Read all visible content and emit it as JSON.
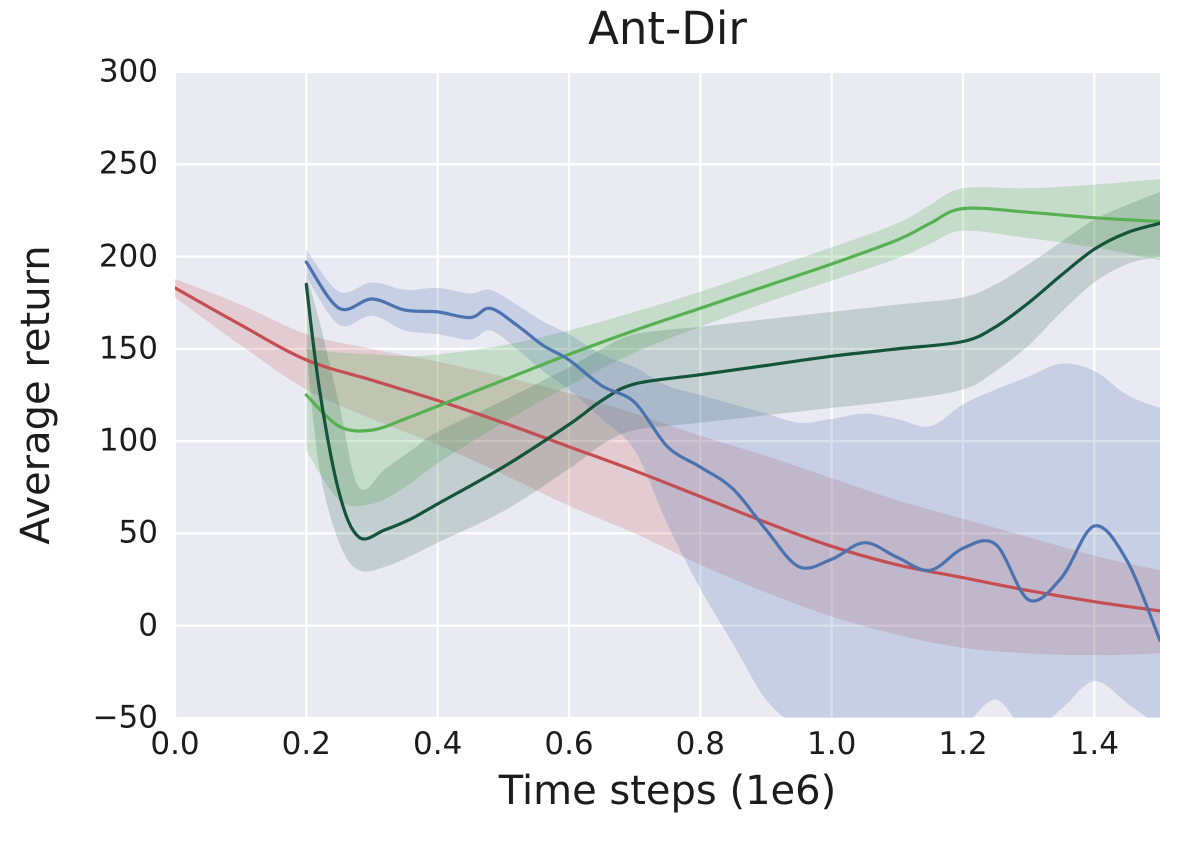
{
  "chart_data": {
    "type": "line",
    "title": "Ant-Dir",
    "xlabel": "Time steps (1e6)",
    "ylabel": "Average return",
    "xlim": [
      0.0,
      1.5
    ],
    "ylim": [
      -50,
      300
    ],
    "xticks": [
      0.0,
      0.2,
      0.4,
      0.6,
      0.8,
      1.0,
      1.2,
      1.4
    ],
    "xtick_labels": [
      "0.0",
      "0.2",
      "0.4",
      "0.6",
      "0.8",
      "1.0",
      "1.2",
      "1.4"
    ],
    "yticks": [
      -50,
      0,
      50,
      100,
      150,
      200,
      250,
      300
    ],
    "ytick_labels": [
      "−50",
      "0",
      "50",
      "100",
      "150",
      "200",
      "250",
      "300"
    ],
    "grid": true,
    "legend": "none",
    "plot_bg": "#eaeaf2",
    "grid_color": "#ffffff",
    "text_color": "#1c1c1c",
    "series": [
      {
        "name": "red",
        "color": "#c44e52",
        "band_color": "rgba(196,78,82,0.20)",
        "x": [
          0.0,
          0.1,
          0.2,
          0.3,
          0.4,
          0.5,
          0.6,
          0.7,
          0.8,
          0.9,
          1.0,
          1.1,
          1.2,
          1.3,
          1.4,
          1.5
        ],
        "y": [
          183,
          163,
          144,
          133,
          122,
          110,
          97,
          84,
          70,
          56,
          43,
          33,
          26,
          19,
          13,
          8
        ],
        "lo": [
          178,
          152,
          128,
          112,
          98,
          82,
          65,
          50,
          33,
          18,
          5,
          -5,
          -12,
          -15,
          -16,
          -15
        ],
        "hi": [
          188,
          174,
          158,
          150,
          143,
          135,
          126,
          115,
          103,
          92,
          80,
          68,
          58,
          48,
          38,
          30
        ]
      },
      {
        "name": "green-light",
        "color": "#57b152",
        "band_color": "rgba(87,178,85,0.25)",
        "x": [
          0.2,
          0.25,
          0.3,
          0.35,
          0.4,
          0.5,
          0.6,
          0.7,
          0.8,
          0.9,
          1.0,
          1.1,
          1.15,
          1.2,
          1.3,
          1.4,
          1.5
        ],
        "y": [
          125,
          108,
          106,
          112,
          119,
          133,
          147,
          160,
          172,
          184,
          196,
          209,
          218,
          226,
          224,
          221,
          219
        ],
        "lo": [
          95,
          68,
          66,
          75,
          88,
          110,
          130,
          148,
          162,
          175,
          187,
          199,
          207,
          214,
          210,
          205,
          198
        ],
        "hi": [
          150,
          148,
          147,
          146,
          147,
          152,
          160,
          170,
          181,
          193,
          205,
          218,
          228,
          237,
          237,
          239,
          242
        ]
      },
      {
        "name": "green-dark",
        "color": "#14543a",
        "band_color": "rgba(21,84,58,0.18)",
        "x": [
          0.2,
          0.22,
          0.25,
          0.28,
          0.32,
          0.36,
          0.4,
          0.5,
          0.6,
          0.65,
          0.7,
          0.8,
          0.9,
          1.0,
          1.1,
          1.2,
          1.25,
          1.3,
          1.35,
          1.4,
          1.45,
          1.5
        ],
        "y": [
          185,
          128,
          72,
          48,
          52,
          58,
          66,
          86,
          109,
          122,
          131,
          136,
          141,
          146,
          150,
          154,
          162,
          175,
          190,
          204,
          213,
          218
        ],
        "lo": [
          150,
          85,
          45,
          30,
          32,
          38,
          45,
          62,
          85,
          98,
          106,
          110,
          114,
          118,
          122,
          128,
          138,
          152,
          170,
          186,
          196,
          200
        ],
        "hi": [
          190,
          165,
          120,
          75,
          85,
          95,
          105,
          122,
          140,
          150,
          158,
          162,
          166,
          170,
          174,
          178,
          185,
          196,
          208,
          220,
          228,
          235
        ]
      },
      {
        "name": "blue",
        "color": "#4c72b0",
        "band_color": "rgba(76,114,176,0.22)",
        "x": [
          0.2,
          0.25,
          0.3,
          0.35,
          0.4,
          0.45,
          0.48,
          0.52,
          0.56,
          0.6,
          0.65,
          0.7,
          0.75,
          0.8,
          0.85,
          0.9,
          0.95,
          1.0,
          1.05,
          1.1,
          1.15,
          1.2,
          1.25,
          1.3,
          1.35,
          1.4,
          1.45,
          1.5
        ],
        "y": [
          197,
          172,
          177,
          171,
          170,
          167,
          172,
          163,
          152,
          144,
          130,
          121,
          97,
          86,
          74,
          52,
          32,
          36,
          45,
          37,
          30,
          42,
          44,
          14,
          26,
          54,
          35,
          -8
        ],
        "lo": [
          189,
          163,
          168,
          160,
          158,
          155,
          160,
          150,
          138,
          128,
          112,
          95,
          55,
          20,
          -10,
          -40,
          -55,
          -60,
          -55,
          -58,
          -62,
          -55,
          -40,
          -58,
          -45,
          -30,
          -42,
          -55
        ],
        "hi": [
          204,
          181,
          186,
          182,
          183,
          180,
          182,
          174,
          165,
          158,
          147,
          140,
          130,
          125,
          120,
          115,
          110,
          112,
          115,
          112,
          108,
          120,
          128,
          135,
          142,
          138,
          125,
          118
        ]
      }
    ]
  }
}
